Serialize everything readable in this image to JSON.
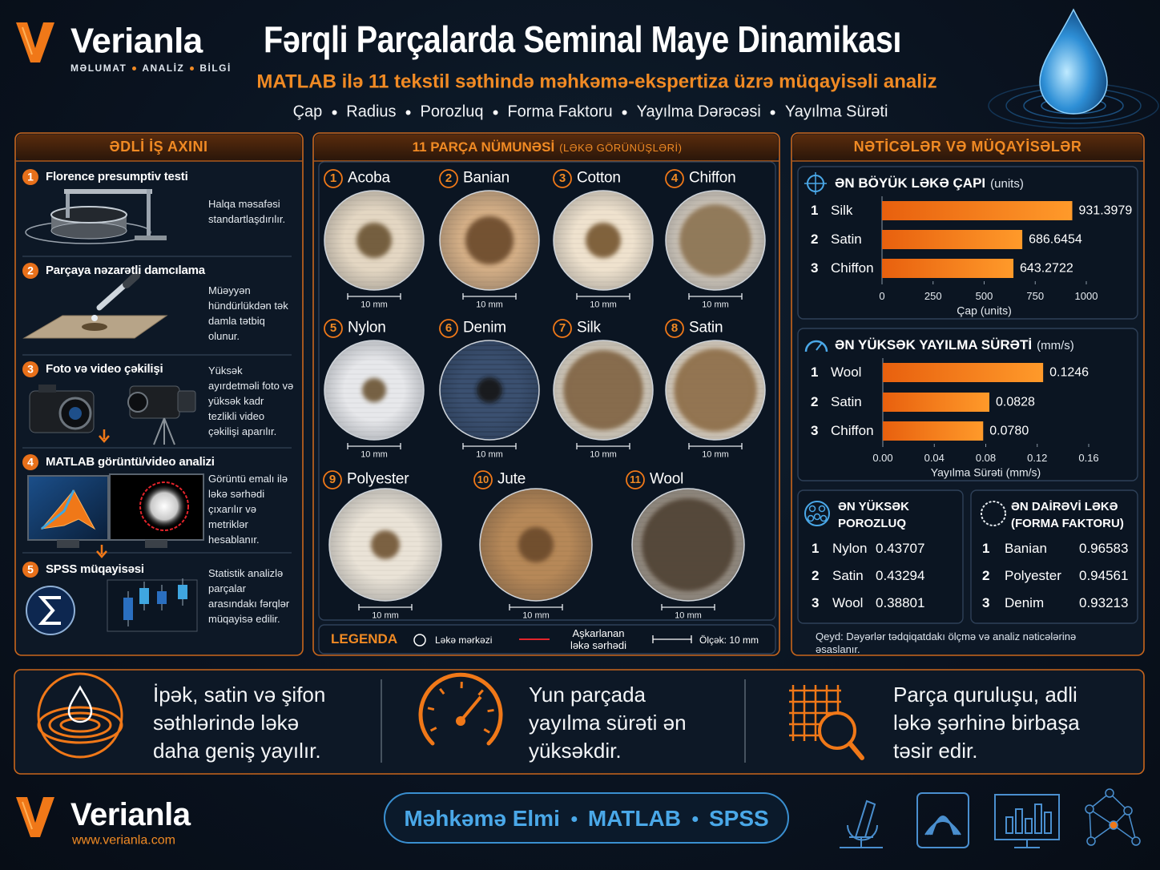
{
  "header": {
    "logo": "Verianla",
    "tagline": [
      "MƏLUMAT",
      "ANALİZ",
      "BİLGİ"
    ],
    "title": "Fərqli Parçalarda Seminal Maye Dinamikası",
    "subtitle": "MATLAB ilə 11 tekstil səthində məhkəmə-ekspertiza üzrə müqayisəli analiz",
    "metrics": [
      "Çap",
      "Radius",
      "Porozluq",
      "Forma Faktoru",
      "Yayılma Dərəcəsi",
      "Yayılma Sürəti"
    ]
  },
  "workflow": {
    "title": "ƏDLİ İŞ AXINI",
    "steps": [
      {
        "number": 1,
        "title": "Florence presumptiv testi",
        "text": "Halqa məsafəsi standartlaşdırılır."
      },
      {
        "number": 2,
        "title": "Parçaya nəzarətli damcılama",
        "text": "Müəyyən hündürlükdən tək damla tətbiq olunur."
      },
      {
        "number": 3,
        "title": "Foto və video çəkilişi",
        "text": "Yüksək ayırdetməli foto və yüksək kadr tezlikli video çəkilişi aparılır."
      },
      {
        "number": 4,
        "title": "MATLAB görüntü/video analizi",
        "text": "Görüntü emalı ilə ləkə sərhədi çıxarılır və metriklər hesablanır."
      },
      {
        "number": 5,
        "title": "SPSS müqayisəsi",
        "text": "Statistik analizlə parçalar arasındakı fərqlər müqayisə edilir."
      }
    ]
  },
  "samples": {
    "title": "11 PARÇA NÜMUNƏSİ",
    "title_note": "(LƏKƏ GÖRÜNÜŞLƏRİ)",
    "scale_label": "10 mm",
    "items": [
      {
        "number": 1,
        "name": "Acoba"
      },
      {
        "number": 2,
        "name": "Banian"
      },
      {
        "number": 3,
        "name": "Cotton"
      },
      {
        "number": 4,
        "name": "Chiffon"
      },
      {
        "number": 5,
        "name": "Nylon"
      },
      {
        "number": 6,
        "name": "Denim"
      },
      {
        "number": 7,
        "name": "Silk"
      },
      {
        "number": 8,
        "name": "Satin"
      },
      {
        "number": 9,
        "name": "Polyester"
      },
      {
        "number": 10,
        "name": "Jute"
      },
      {
        "number": 11,
        "name": "Wool"
      }
    ],
    "legend": {
      "title": "LEGENDA",
      "items": [
        "Ləkə mərkəzi",
        "Aşkarlanan ləkə sərhədi",
        "Ölçək: 10 mm"
      ]
    }
  },
  "results": {
    "title": "NƏTİCƏLƏR VƏ MÜQAYİSƏLƏR",
    "tables": [
      {
        "title": "ƏN YÜKSƏK POROZLUQ",
        "rows": [
          {
            "rank": 1,
            "name": "Nylon",
            "value": 0.43707
          },
          {
            "rank": 2,
            "name": "Satin",
            "value": 0.43294
          },
          {
            "rank": 3,
            "name": "Wool",
            "value": 0.38801
          }
        ]
      },
      {
        "title": "ƏN DAİRƏVİ LƏKƏ (FORMA FAKTORU)",
        "rows": [
          {
            "rank": 1,
            "name": "Banian",
            "value": 0.96583
          },
          {
            "rank": 2,
            "name": "Polyester",
            "value": 0.94561
          },
          {
            "rank": 3,
            "name": "Denim",
            "value": 0.93213
          }
        ]
      }
    ],
    "note": "Qeyd: Dəyərlər tədqiqatdakı ölçmə və analiz nəticələrinə əsaslanır."
  },
  "chart_data": [
    {
      "type": "bar",
      "horizontal": true,
      "title": "ƏN BÖYÜK LƏKƏ ÇAPI",
      "title_unit": "(units)",
      "ranks": [
        1,
        2,
        3
      ],
      "categories": [
        "Silk",
        "Satin",
        "Chiffon"
      ],
      "values": [
        931.3979,
        686.6454,
        643.2722
      ],
      "color": "#f07d1a",
      "xlim": [
        0,
        1000
      ],
      "xticks": [
        0,
        250,
        500,
        750,
        1000
      ],
      "xlabel": "Çap (units)"
    },
    {
      "type": "bar",
      "horizontal": true,
      "title": "ƏN YÜKSƏK YAYILMA SÜRƏTİ",
      "title_unit": "(mm/s)",
      "ranks": [
        1,
        2,
        3
      ],
      "categories": [
        "Wool",
        "Satin",
        "Chiffon"
      ],
      "values": [
        0.1246,
        0.0828,
        0.078
      ],
      "value_labels": [
        "0.1246",
        "0.0828",
        "0.0780"
      ],
      "color": "#f07d1a",
      "xlim": [
        0,
        0.16
      ],
      "xticks": [
        {
          "value": 0,
          "label": "0.00"
        },
        0.04,
        0.08,
        0.12,
        0.16
      ],
      "xlabel": "Yayılma Sürəti (mm/s)"
    }
  ],
  "findings": [
    "İpək, satin və şifon səthlərində ləkə daha geniş yayılır.",
    "Yun parçada yayılma sürəti ən yüksəkdir.",
    "Parça quruluşu, adli ləkə şərhinə birbaşa təsir edir."
  ],
  "footer": {
    "logo": "Verianla",
    "url": "www.verianla.com",
    "tags": [
      "Məhkəmə Elmi",
      "MATLAB",
      "SPSS"
    ]
  }
}
